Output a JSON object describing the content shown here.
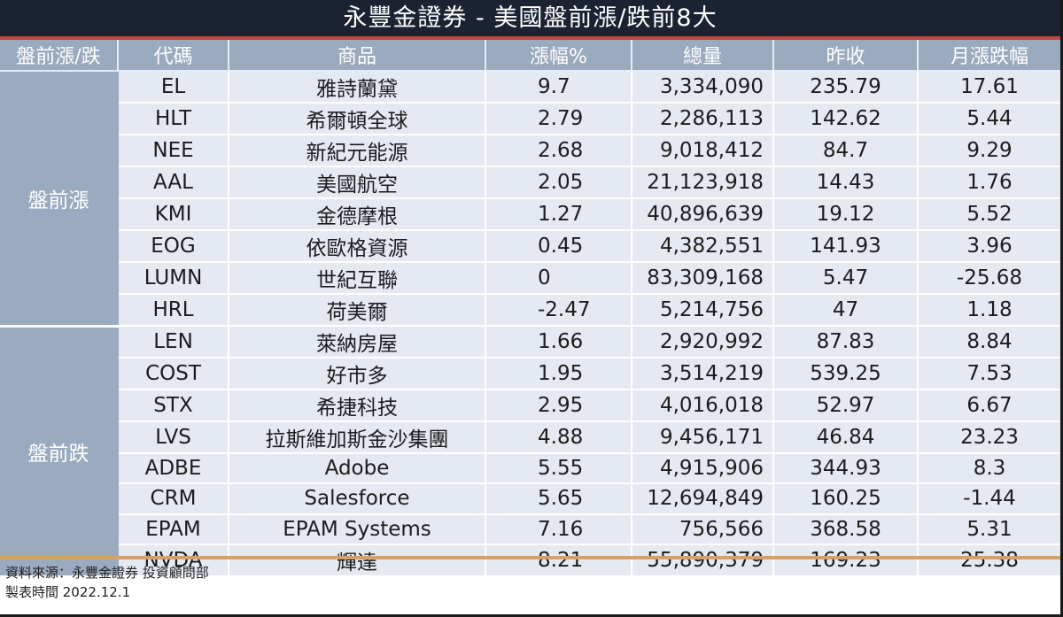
{
  "title": "永豐金證券 - 美國盤前漲/跌前8大",
  "columns": [
    "盤前漲/跌",
    "代碼",
    "商品",
    "漲幅%",
    "總量",
    "昨收",
    "月漲跌幅"
  ],
  "groups": [
    {
      "label": "盤前漲",
      "rows": [
        {
          "code": "EL",
          "name": "雅詩蘭黛",
          "change_pct": "9.7",
          "volume": "3,334,090",
          "prev_close": "235.79",
          "monthly_change": "17.61"
        },
        {
          "code": "HLT",
          "name": "希爾頓全球",
          "change_pct": "2.79",
          "volume": "2,286,113",
          "prev_close": "142.62",
          "monthly_change": "5.44"
        },
        {
          "code": "NEE",
          "name": "新紀元能源",
          "change_pct": "2.68",
          "volume": "9,018,412",
          "prev_close": "84.7",
          "monthly_change": "9.29"
        },
        {
          "code": "AAL",
          "name": "美國航空",
          "change_pct": "2.05",
          "volume": "21,123,918",
          "prev_close": "14.43",
          "monthly_change": "1.76"
        },
        {
          "code": "KMI",
          "name": "金德摩根",
          "change_pct": "1.27",
          "volume": "40,896,639",
          "prev_close": "19.12",
          "monthly_change": "5.52"
        },
        {
          "code": "EOG",
          "name": "依歐格資源",
          "change_pct": "0.45",
          "volume": "4,382,551",
          "prev_close": "141.93",
          "monthly_change": "3.96"
        },
        {
          "code": "LUMN",
          "name": "世紀互聯",
          "change_pct": "0",
          "volume": "83,309,168",
          "prev_close": "5.47",
          "monthly_change": "-25.68"
        },
        {
          "code": "HRL",
          "name": "荷美爾",
          "change_pct": "-2.47",
          "volume": "5,214,756",
          "prev_close": "47",
          "monthly_change": "1.18"
        }
      ]
    },
    {
      "label": "盤前跌",
      "rows": [
        {
          "code": "LEN",
          "name": "萊納房屋",
          "change_pct": "1.66",
          "volume": "2,920,992",
          "prev_close": "87.83",
          "monthly_change": "8.84"
        },
        {
          "code": "COST",
          "name": "好市多",
          "change_pct": "1.95",
          "volume": "3,514,219",
          "prev_close": "539.25",
          "monthly_change": "7.53"
        },
        {
          "code": "STX",
          "name": "希捷科技",
          "change_pct": "2.95",
          "volume": "4,016,018",
          "prev_close": "52.97",
          "monthly_change": "6.67"
        },
        {
          "code": "LVS",
          "name": "拉斯維加斯金沙集團",
          "change_pct": "4.88",
          "volume": "9,456,171",
          "prev_close": "46.84",
          "monthly_change": "23.23"
        },
        {
          "code": "ADBE",
          "name": "Adobe",
          "change_pct": "5.55",
          "volume": "4,915,906",
          "prev_close": "344.93",
          "monthly_change": "8.3"
        },
        {
          "code": "CRM",
          "name": "Salesforce",
          "change_pct": "5.65",
          "volume": "12,694,849",
          "prev_close": "160.25",
          "monthly_change": "-1.44"
        },
        {
          "code": "EPAM",
          "name": "EPAM Systems",
          "change_pct": "7.16",
          "volume": "756,566",
          "prev_close": "368.58",
          "monthly_change": "5.31"
        },
        {
          "code": "NVDA",
          "name": "輝達",
          "change_pct": "8.21",
          "volume": "55,890,379",
          "prev_close": "169.23",
          "monthly_change": "25.38"
        }
      ]
    }
  ],
  "footer": {
    "source": "資料來源：永豐金證券 投資顧問部",
    "date": "製表時間 2022.12.1"
  },
  "colors": {
    "title_bg": "#1b2232",
    "title_underline": "#c4473b",
    "header_bg": "#9aaabf",
    "row_bg": "#e5e9f2",
    "bottom_line": "#d9a066"
  }
}
